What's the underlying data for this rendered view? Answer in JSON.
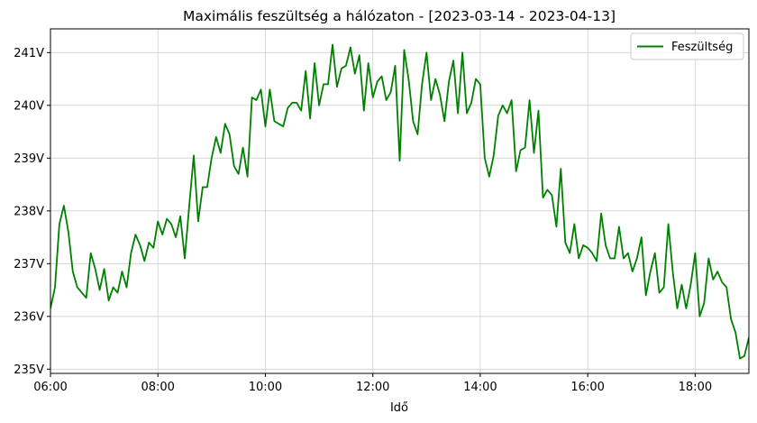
{
  "chart_data": {
    "type": "line",
    "title": "Maximális feszültség a hálózaton  -  [2023-03-14 - 2023-04-13]",
    "xlabel": "Idő",
    "ylabel": "",
    "x_range": [
      "06:00",
      "19:00"
    ],
    "ylim": [
      234.92,
      241.45
    ],
    "grid": true,
    "legend_position": "top-right",
    "x_ticks": [
      "06:00",
      "08:00",
      "10:00",
      "12:00",
      "14:00",
      "16:00",
      "18:00"
    ],
    "y_ticks": [
      {
        "value": 235,
        "label": "235V"
      },
      {
        "value": 236,
        "label": "236V"
      },
      {
        "value": 237,
        "label": "237V"
      },
      {
        "value": 238,
        "label": "238V"
      },
      {
        "value": 239,
        "label": "239V"
      },
      {
        "value": 240,
        "label": "240V"
      },
      {
        "value": 241,
        "label": "241V"
      }
    ],
    "series": [
      {
        "name": "Feszültség",
        "color": "#008000",
        "points": [
          [
            "06:00",
            236.15
          ],
          [
            "06:05",
            236.55
          ],
          [
            "06:10",
            237.75
          ],
          [
            "06:15",
            238.1
          ],
          [
            "06:20",
            237.6
          ],
          [
            "06:25",
            236.85
          ],
          [
            "06:30",
            236.55
          ],
          [
            "06:35",
            236.45
          ],
          [
            "06:40",
            236.35
          ],
          [
            "06:45",
            237.2
          ],
          [
            "06:50",
            236.9
          ],
          [
            "06:55",
            236.5
          ],
          [
            "07:00",
            236.9
          ],
          [
            "07:05",
            236.3
          ],
          [
            "07:10",
            236.55
          ],
          [
            "07:15",
            236.45
          ],
          [
            "07:20",
            236.85
          ],
          [
            "07:25",
            236.55
          ],
          [
            "07:30",
            237.2
          ],
          [
            "07:35",
            237.55
          ],
          [
            "07:40",
            237.35
          ],
          [
            "07:45",
            237.05
          ],
          [
            "07:50",
            237.4
          ],
          [
            "07:55",
            237.3
          ],
          [
            "08:00",
            237.8
          ],
          [
            "08:05",
            237.55
          ],
          [
            "08:10",
            237.85
          ],
          [
            "08:15",
            237.75
          ],
          [
            "08:20",
            237.5
          ],
          [
            "08:25",
            237.9
          ],
          [
            "08:30",
            237.1
          ],
          [
            "08:35",
            238.1
          ],
          [
            "08:40",
            239.05
          ],
          [
            "08:45",
            237.8
          ],
          [
            "08:50",
            238.45
          ],
          [
            "08:55",
            238.45
          ],
          [
            "09:00",
            239.0
          ],
          [
            "09:05",
            239.4
          ],
          [
            "09:10",
            239.1
          ],
          [
            "09:15",
            239.65
          ],
          [
            "09:20",
            239.45
          ],
          [
            "09:25",
            238.85
          ],
          [
            "09:30",
            238.7
          ],
          [
            "09:35",
            239.2
          ],
          [
            "09:40",
            238.65
          ],
          [
            "09:45",
            240.15
          ],
          [
            "09:50",
            240.1
          ],
          [
            "09:55",
            240.3
          ],
          [
            "10:00",
            239.6
          ],
          [
            "10:05",
            240.3
          ],
          [
            "10:10",
            239.7
          ],
          [
            "10:15",
            239.65
          ],
          [
            "10:20",
            239.6
          ],
          [
            "10:25",
            239.95
          ],
          [
            "10:30",
            240.05
          ],
          [
            "10:35",
            240.05
          ],
          [
            "10:40",
            239.9
          ],
          [
            "10:45",
            240.65
          ],
          [
            "10:50",
            239.75
          ],
          [
            "10:55",
            240.8
          ],
          [
            "11:00",
            240.0
          ],
          [
            "11:05",
            240.4
          ],
          [
            "11:10",
            240.4
          ],
          [
            "11:15",
            241.15
          ],
          [
            "11:20",
            240.35
          ],
          [
            "11:25",
            240.7
          ],
          [
            "11:30",
            240.75
          ],
          [
            "11:35",
            241.1
          ],
          [
            "11:40",
            240.6
          ],
          [
            "11:45",
            240.95
          ],
          [
            "11:50",
            239.9
          ],
          [
            "11:55",
            240.8
          ],
          [
            "12:00",
            240.15
          ],
          [
            "12:05",
            240.45
          ],
          [
            "12:10",
            240.55
          ],
          [
            "12:15",
            240.1
          ],
          [
            "12:20",
            240.25
          ],
          [
            "12:25",
            240.75
          ],
          [
            "12:30",
            238.95
          ],
          [
            "12:35",
            241.05
          ],
          [
            "12:40",
            240.5
          ],
          [
            "12:45",
            239.7
          ],
          [
            "12:50",
            239.45
          ],
          [
            "12:55",
            240.4
          ],
          [
            "13:00",
            241.0
          ],
          [
            "13:05",
            240.1
          ],
          [
            "13:10",
            240.5
          ],
          [
            "13:15",
            240.2
          ],
          [
            "13:20",
            239.7
          ],
          [
            "13:25",
            240.45
          ],
          [
            "13:30",
            240.85
          ],
          [
            "13:35",
            239.85
          ],
          [
            "13:40",
            241.0
          ],
          [
            "13:45",
            239.85
          ],
          [
            "13:50",
            240.05
          ],
          [
            "13:55",
            240.5
          ],
          [
            "14:00",
            240.4
          ],
          [
            "14:05",
            239.0
          ],
          [
            "14:10",
            238.65
          ],
          [
            "14:15",
            239.05
          ],
          [
            "14:20",
            239.8
          ],
          [
            "14:25",
            240.0
          ],
          [
            "14:30",
            239.85
          ],
          [
            "14:35",
            240.1
          ],
          [
            "14:40",
            238.75
          ],
          [
            "14:45",
            239.15
          ],
          [
            "14:50",
            239.2
          ],
          [
            "14:55",
            240.1
          ],
          [
            "15:00",
            239.1
          ],
          [
            "15:05",
            239.9
          ],
          [
            "15:10",
            238.25
          ],
          [
            "15:15",
            238.4
          ],
          [
            "15:20",
            238.3
          ],
          [
            "15:25",
            237.7
          ],
          [
            "15:30",
            238.8
          ],
          [
            "15:35",
            237.4
          ],
          [
            "15:40",
            237.2
          ],
          [
            "15:45",
            237.75
          ],
          [
            "15:50",
            237.1
          ],
          [
            "15:55",
            237.35
          ],
          [
            "16:00",
            237.3
          ],
          [
            "16:05",
            237.2
          ],
          [
            "16:10",
            237.05
          ],
          [
            "16:15",
            237.95
          ],
          [
            "16:20",
            237.35
          ],
          [
            "16:25",
            237.1
          ],
          [
            "16:30",
            237.1
          ],
          [
            "16:35",
            237.7
          ],
          [
            "16:40",
            237.1
          ],
          [
            "16:45",
            237.2
          ],
          [
            "16:50",
            236.85
          ],
          [
            "16:55",
            237.1
          ],
          [
            "17:00",
            237.5
          ],
          [
            "17:05",
            236.4
          ],
          [
            "17:10",
            236.85
          ],
          [
            "17:15",
            237.2
          ],
          [
            "17:20",
            236.45
          ],
          [
            "17:25",
            236.55
          ],
          [
            "17:30",
            237.75
          ],
          [
            "17:35",
            236.85
          ],
          [
            "17:40",
            236.15
          ],
          [
            "17:45",
            236.6
          ],
          [
            "17:50",
            236.15
          ],
          [
            "17:55",
            236.6
          ],
          [
            "18:00",
            237.2
          ],
          [
            "18:05",
            236.0
          ],
          [
            "18:10",
            236.25
          ],
          [
            "18:15",
            237.1
          ],
          [
            "18:20",
            236.7
          ],
          [
            "18:25",
            236.85
          ],
          [
            "18:30",
            236.65
          ],
          [
            "18:35",
            236.55
          ],
          [
            "18:40",
            235.95
          ],
          [
            "18:45",
            235.7
          ],
          [
            "18:50",
            235.2
          ],
          [
            "18:55",
            235.25
          ],
          [
            "19:00",
            235.6
          ]
        ]
      }
    ]
  }
}
